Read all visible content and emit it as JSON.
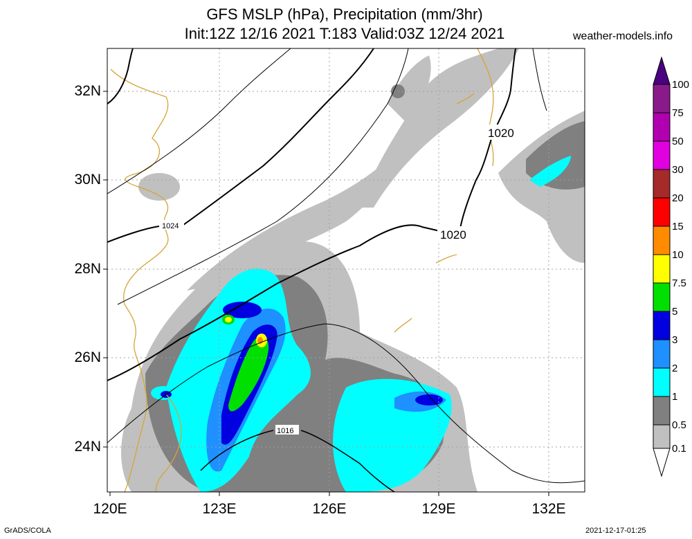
{
  "title": {
    "line1": "GFS MSLP (hPa), Precipitation (mm/3hr)",
    "line2": "Init:12Z 12/16 2021 T:183 Valid:03Z 12/24 2021"
  },
  "source_label": "weather-models.info",
  "footer": {
    "left": "GrADS/COLA",
    "right": "2021-12-17-01:25"
  },
  "axes": {
    "lat_labels": [
      "32N",
      "30N",
      "28N",
      "26N",
      "24N"
    ],
    "lon_labels": [
      "120E",
      "123E",
      "126E",
      "129E",
      "132E"
    ],
    "lat_range": [
      23,
      33
    ],
    "lon_range": [
      120,
      133
    ]
  },
  "isobar_labels": [
    "1020",
    "1020",
    "1024",
    "1016"
  ],
  "colorbar": {
    "labels": [
      "100",
      "75",
      "50",
      "30",
      "20",
      "15",
      "10",
      "7.5",
      "5",
      "3",
      "2",
      "1",
      "0.5",
      "0.1"
    ],
    "colors": [
      "#8a1a8a",
      "#b000b0",
      "#e000e0",
      "#a52a2a",
      "#ff0000",
      "#ff8c00",
      "#ffff00",
      "#00e000",
      "#0000e0",
      "#1e90ff",
      "#00ffff",
      "#808080",
      "#c0c0c0",
      "#ffffff"
    ],
    "top_color": "#4b0082"
  },
  "colors": {
    "coastline": "#d4a536",
    "isobar": "#000000",
    "grid": "#a0a0a0"
  }
}
